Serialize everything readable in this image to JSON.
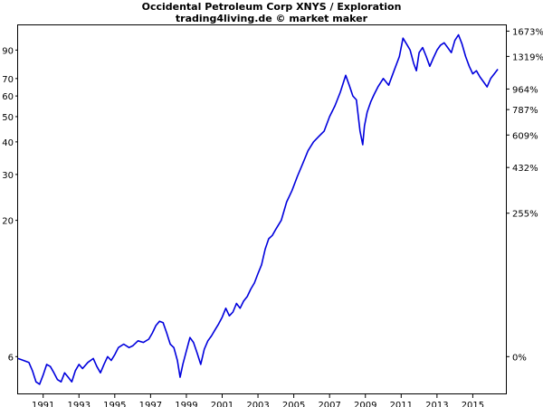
{
  "chart_data": {
    "type": "line",
    "title": "Occidental Petroleum Corp XNYS / Exploration",
    "subtitle": "trading4living.de © market maker",
    "y_scale": "log",
    "ylim": [
      4.3,
      112
    ],
    "xlim": [
      1989.6,
      2016.9
    ],
    "x_ticks": [
      {
        "value": 1991,
        "label": "1991"
      },
      {
        "value": 1993,
        "label": "1993"
      },
      {
        "value": 1995,
        "label": "1995"
      },
      {
        "value": 1997,
        "label": "1997"
      },
      {
        "value": 1999,
        "label": "1999"
      },
      {
        "value": 2001,
        "label": "2001"
      },
      {
        "value": 2003,
        "label": "2003"
      },
      {
        "value": 2005,
        "label": "2005"
      },
      {
        "value": 2007,
        "label": "2007"
      },
      {
        "value": 2009,
        "label": "2009"
      },
      {
        "value": 2011,
        "label": "2011"
      },
      {
        "value": 2013,
        "label": "2013"
      },
      {
        "value": 2015,
        "label": "2015"
      }
    ],
    "y_ticks_left": [
      {
        "value": 6,
        "label": "6"
      },
      {
        "value": 20,
        "label": "20"
      },
      {
        "value": 30,
        "label": "30"
      },
      {
        "value": 40,
        "label": "40"
      },
      {
        "value": 50,
        "label": "50"
      },
      {
        "value": 60,
        "label": "60"
      },
      {
        "value": 70,
        "label": "70"
      },
      {
        "value": 90,
        "label": "90"
      }
    ],
    "y_ticks_right": [
      {
        "value": 6,
        "label": "0%"
      },
      {
        "value": 21.3,
        "label": "255%"
      },
      {
        "value": 31.9,
        "label": "432%"
      },
      {
        "value": 42.5,
        "label": "609%"
      },
      {
        "value": 53.2,
        "label": "787%"
      },
      {
        "value": 63.8,
        "label": "964%"
      },
      {
        "value": 85.1,
        "label": "1319%"
      },
      {
        "value": 106.4,
        "label": "1673%"
      }
    ],
    "grid": false,
    "legend": "none",
    "series": [
      {
        "color": "#0000dd",
        "x": [
          1989.6,
          1989.9,
          1990.2,
          1990.4,
          1990.6,
          1990.8,
          1991.0,
          1991.2,
          1991.4,
          1991.6,
          1991.8,
          1992.0,
          1992.2,
          1992.4,
          1992.6,
          1992.8,
          1993.0,
          1993.2,
          1993.5,
          1993.8,
          1994.0,
          1994.2,
          1994.4,
          1994.6,
          1994.8,
          1995.0,
          1995.2,
          1995.5,
          1995.8,
          1996.0,
          1996.3,
          1996.6,
          1996.9,
          1997.1,
          1997.3,
          1997.5,
          1997.7,
          1997.9,
          1998.1,
          1998.3,
          1998.5,
          1998.65,
          1998.8,
          1999.0,
          1999.2,
          1999.4,
          1999.6,
          1999.8,
          2000.0,
          2000.2,
          2000.4,
          2000.6,
          2000.8,
          2001.0,
          2001.2,
          2001.4,
          2001.6,
          2001.8,
          2002.0,
          2002.2,
          2002.4,
          2002.6,
          2002.8,
          2003.0,
          2003.2,
          2003.4,
          2003.6,
          2003.8,
          2004.0,
          2004.3,
          2004.6,
          2004.9,
          2005.2,
          2005.5,
          2005.8,
          2006.1,
          2006.4,
          2006.7,
          2007.0,
          2007.3,
          2007.6,
          2007.9,
          2008.1,
          2008.3,
          2008.5,
          2008.7,
          2008.85,
          2008.95,
          2009.1,
          2009.3,
          2009.5,
          2009.7,
          2010.0,
          2010.3,
          2010.6,
          2010.9,
          2011.1,
          2011.3,
          2011.5,
          2011.7,
          2011.85,
          2012.0,
          2012.2,
          2012.4,
          2012.6,
          2012.8,
          2013.0,
          2013.2,
          2013.4,
          2013.6,
          2013.8,
          2014.0,
          2014.2,
          2014.4,
          2014.6,
          2014.8,
          2015.0,
          2015.2,
          2015.4,
          2015.6,
          2015.8,
          2016.0,
          2016.2,
          2016.4
        ],
        "values": [
          5.9,
          5.8,
          5.7,
          5.3,
          4.8,
          4.7,
          5.1,
          5.6,
          5.5,
          5.2,
          4.9,
          4.8,
          5.2,
          5.0,
          4.8,
          5.3,
          5.6,
          5.4,
          5.7,
          5.9,
          5.5,
          5.2,
          5.6,
          6.0,
          5.8,
          6.1,
          6.5,
          6.7,
          6.5,
          6.6,
          6.9,
          6.8,
          7.0,
          7.4,
          7.9,
          8.2,
          8.1,
          7.4,
          6.7,
          6.5,
          5.8,
          5.0,
          5.6,
          6.3,
          7.1,
          6.8,
          6.2,
          5.6,
          6.4,
          6.9,
          7.2,
          7.6,
          8.0,
          8.5,
          9.2,
          8.6,
          8.9,
          9.6,
          9.2,
          9.8,
          10.2,
          10.9,
          11.5,
          12.5,
          13.5,
          15.5,
          17.0,
          17.5,
          18.5,
          20.0,
          23.5,
          26.0,
          29.5,
          33.0,
          37.0,
          40.0,
          42.0,
          44.0,
          50.0,
          55.0,
          62.0,
          72.0,
          66.0,
          60.0,
          58.0,
          44.0,
          39.0,
          46.0,
          52.0,
          57.0,
          61.0,
          65.0,
          70.0,
          66.0,
          75.0,
          85.0,
          100.0,
          95.0,
          90.0,
          80.0,
          75.0,
          88.0,
          92.0,
          85.0,
          78.0,
          84.0,
          90.0,
          94.0,
          96.0,
          92.0,
          88.0,
          98.0,
          103.0,
          95.0,
          85.0,
          78.0,
          73.0,
          75.0,
          71.0,
          68.0,
          65.0,
          70.0,
          73.0,
          76.0
        ]
      }
    ]
  }
}
